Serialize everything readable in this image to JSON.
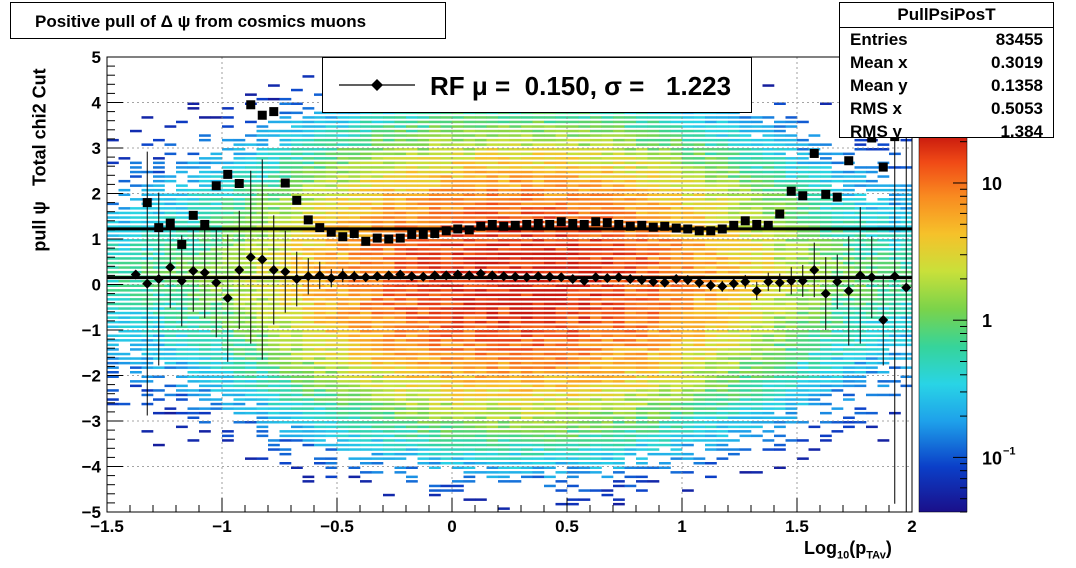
{
  "title": "Positive pull of Δ ψ from cosmics muons",
  "stats": {
    "name": "PullPsiPosT",
    "rows": [
      {
        "label": "Entries",
        "value": "83455"
      },
      {
        "label": "Mean x",
        "value": "0.3019"
      },
      {
        "label": "Mean y",
        "value": "0.1358"
      },
      {
        "label": "RMS x",
        "value": "0.5053"
      },
      {
        "label": "RMS y",
        "value": "1.384"
      }
    ]
  },
  "legend": {
    "text": "RF μ =  0.150, σ =   1.223"
  },
  "axes": {
    "ylabel": "pull ψ   Total chi2 Cut",
    "xlabel_main": "Log",
    "xlabel_sub1": "10",
    "xlabel_paren": "(p",
    "xlabel_sub2": "TAv",
    "xlabel_close": ")"
  },
  "colors": {
    "fit_line": "#000000",
    "markers": "#000000",
    "frame": "#000000"
  },
  "chart_data": {
    "type": "heatmap",
    "title": "Positive pull of Δ ψ from cosmics muons",
    "xlabel": "Log10(pTAv)",
    "ylabel": "pull ψ   Total chi2 Cut",
    "xlim": [
      -1.5,
      2
    ],
    "ylim": [
      -5,
      5
    ],
    "x_ticks": [
      -1.5,
      -1,
      -0.5,
      0,
      0.5,
      1,
      1.5,
      2
    ],
    "x_tick_labels": [
      "−1.5",
      "−1",
      "−0.5",
      "0",
      "0.5",
      "1",
      "1.5",
      "2"
    ],
    "y_ticks": [
      -5,
      -4,
      -3,
      -2,
      -1,
      0,
      1,
      2,
      3,
      4,
      5
    ],
    "y_tick_labels": [
      "−5",
      "−4",
      "−3",
      "−2",
      "−1",
      "0",
      "1",
      "2",
      "3",
      "4",
      "5"
    ],
    "grid": true,
    "color_scale": "log",
    "colorbar_ticks": [
      {
        "value": 0.1,
        "base": "10",
        "exp": "−1"
      },
      {
        "value": 1,
        "base": "1",
        "exp": ""
      },
      {
        "value": 10,
        "base": "10",
        "exp": ""
      }
    ],
    "colorbar_range": [
      0.04,
      22
    ],
    "density_model": {
      "x_center": 0.3,
      "x_sigma": 0.5,
      "y_center": 0.14,
      "y_sigma": 1.38,
      "peak_count": 20
    },
    "fit_lines": [
      {
        "name": "mean fit",
        "y": 0.15
      },
      {
        "name": "sigma fit",
        "y": 1.223
      }
    ],
    "series": [
      {
        "name": "mean",
        "marker": "diamond",
        "x": [
          -1.375,
          -1.325,
          -1.275,
          -1.225,
          -1.175,
          -1.125,
          -1.075,
          -1.025,
          -0.975,
          -0.925,
          -0.875,
          -0.825,
          -0.775,
          -0.725,
          -0.675,
          -0.625,
          -0.575,
          -0.525,
          -0.475,
          -0.425,
          -0.375,
          -0.325,
          -0.275,
          -0.225,
          -0.175,
          -0.125,
          -0.075,
          -0.025,
          0.025,
          0.075,
          0.125,
          0.175,
          0.225,
          0.275,
          0.325,
          0.375,
          0.425,
          0.475,
          0.525,
          0.575,
          0.625,
          0.675,
          0.725,
          0.775,
          0.825,
          0.875,
          0.925,
          0.975,
          1.025,
          1.075,
          1.125,
          1.175,
          1.225,
          1.275,
          1.325,
          1.375,
          1.425,
          1.475,
          1.525,
          1.575,
          1.625,
          1.675,
          1.725,
          1.775,
          1.825,
          1.875,
          1.925,
          1.975
        ],
        "y": [
          0.22,
          0.02,
          0.12,
          0.38,
          0.08,
          0.3,
          0.26,
          0.04,
          -0.3,
          0.32,
          0.6,
          0.55,
          0.32,
          0.28,
          0.12,
          0.18,
          0.2,
          0.14,
          0.2,
          0.18,
          0.16,
          0.18,
          0.2,
          0.22,
          0.18,
          0.17,
          0.2,
          0.2,
          0.22,
          0.2,
          0.24,
          0.2,
          0.18,
          0.17,
          0.16,
          0.18,
          0.17,
          0.16,
          0.12,
          0.08,
          0.16,
          0.14,
          0.16,
          0.12,
          0.1,
          0.06,
          0.04,
          0.12,
          0.1,
          0.04,
          -0.02,
          -0.04,
          0.02,
          0.06,
          -0.14,
          0.06,
          0.04,
          0.08,
          0.08,
          0.32,
          -0.2,
          0.06,
          -0.14,
          0.2,
          0.16,
          -0.78,
          0.18,
          -0.07
        ],
        "err": [
          0,
          2.9,
          1.9,
          0.9,
          1.0,
          0.9,
          1.0,
          1.2,
          1.4,
          1.3,
          1.9,
          2.2,
          1.2,
          0.9,
          0.6,
          0.4,
          0.3,
          0.2,
          0.15,
          0.12,
          0.1,
          0.08,
          0.08,
          0.07,
          0.07,
          0.07,
          0.07,
          0.07,
          0.07,
          0.07,
          0.07,
          0.07,
          0.07,
          0.07,
          0.07,
          0.07,
          0.07,
          0.07,
          0.07,
          0.07,
          0.07,
          0.07,
          0.08,
          0.08,
          0.08,
          0.08,
          0.1,
          0.1,
          0.1,
          0.12,
          0.12,
          0.12,
          0.14,
          0.15,
          0.2,
          0.2,
          0.2,
          0.3,
          0.35,
          0.6,
          0.8,
          0.6,
          1.2,
          1.5,
          0.9,
          1.0,
          5.0,
          5.0
        ]
      },
      {
        "name": "sigma",
        "marker": "square",
        "x": [
          -1.325,
          -1.275,
          -1.225,
          -1.175,
          -1.125,
          -1.075,
          -1.025,
          -0.975,
          -0.925,
          -0.875,
          -0.825,
          -0.775,
          -0.725,
          -0.675,
          -0.625,
          -0.575,
          -0.525,
          -0.475,
          -0.425,
          -0.375,
          -0.325,
          -0.275,
          -0.225,
          -0.175,
          -0.125,
          -0.075,
          -0.025,
          0.025,
          0.075,
          0.125,
          0.175,
          0.225,
          0.275,
          0.325,
          0.375,
          0.425,
          0.475,
          0.525,
          0.575,
          0.625,
          0.675,
          0.725,
          0.775,
          0.825,
          0.875,
          0.925,
          0.975,
          1.025,
          1.075,
          1.125,
          1.175,
          1.225,
          1.275,
          1.325,
          1.375,
          1.425,
          1.475,
          1.525,
          1.575,
          1.625,
          1.675,
          1.725,
          1.775,
          1.825,
          1.875,
          1.925,
          1.975
        ],
        "y": [
          1.8,
          1.25,
          1.35,
          0.88,
          1.52,
          1.32,
          2.17,
          2.42,
          2.22,
          3.95,
          3.72,
          3.8,
          2.23,
          1.85,
          1.42,
          1.25,
          1.15,
          1.05,
          1.12,
          0.95,
          1.02,
          1.0,
          1.02,
          1.1,
          1.1,
          1.12,
          1.18,
          1.22,
          1.2,
          1.28,
          1.32,
          1.28,
          1.3,
          1.32,
          1.34,
          1.32,
          1.38,
          1.34,
          1.32,
          1.38,
          1.36,
          1.32,
          1.28,
          1.3,
          1.26,
          1.28,
          1.24,
          1.22,
          1.18,
          1.18,
          1.22,
          1.3,
          1.4,
          1.32,
          1.3,
          1.55,
          2.05,
          1.95,
          2.88,
          1.98,
          1.92,
          2.72,
          3.55,
          3.22,
          2.58,
          3.25,
          3.95
        ],
        "err": [
          0,
          0,
          0,
          0,
          0,
          0,
          0,
          0,
          0,
          0,
          0,
          0,
          0,
          0,
          0,
          0,
          0,
          0,
          0,
          0,
          0,
          0,
          0,
          0,
          0,
          0,
          0,
          0,
          0,
          0,
          0,
          0,
          0,
          0,
          0,
          0,
          0,
          0,
          0,
          0,
          0,
          0,
          0,
          0,
          0,
          0,
          0,
          0,
          0,
          0,
          0,
          0,
          0,
          0,
          0,
          0,
          0,
          0,
          0,
          0,
          0,
          0,
          0,
          0,
          0,
          0,
          0
        ]
      }
    ]
  }
}
